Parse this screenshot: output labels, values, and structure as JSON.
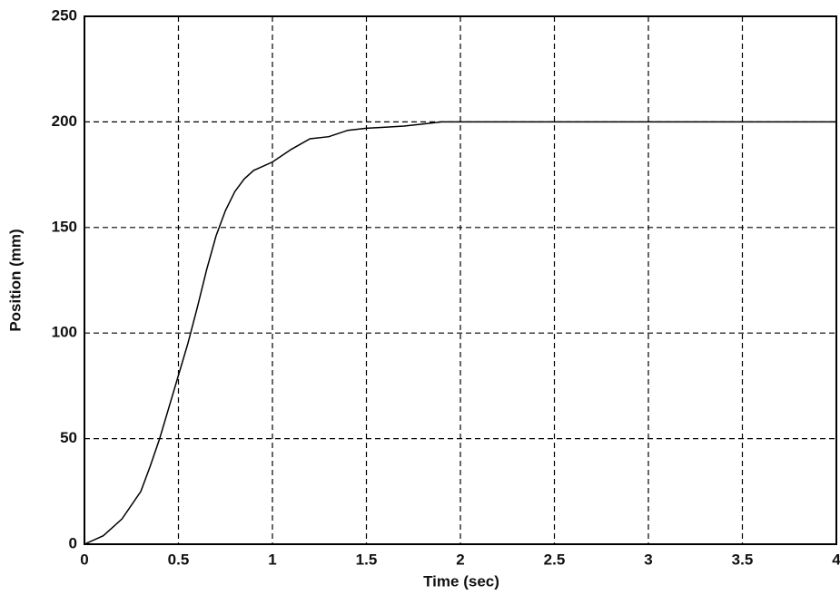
{
  "chart_data": {
    "type": "line",
    "x_label": "Time (sec)",
    "y_label": "Position (mm)",
    "x": [
      0,
      0.1,
      0.2,
      0.3,
      0.35,
      0.4,
      0.45,
      0.5,
      0.55,
      0.6,
      0.65,
      0.7,
      0.75,
      0.8,
      0.85,
      0.9,
      1.0,
      1.1,
      1.2,
      1.3,
      1.4,
      1.5,
      1.6,
      1.7,
      1.8,
      1.9,
      2.0,
      4.0
    ],
    "series": [
      {
        "color": "#000000",
        "values": [
          0,
          4,
          12,
          25,
          37,
          50,
          65,
          80,
          95,
          112,
          130,
          146,
          158,
          167,
          173,
          177,
          181,
          187,
          192,
          193,
          196,
          197,
          197.5,
          198,
          199,
          200,
          200,
          200
        ]
      }
    ],
    "xlim": [
      0,
      4
    ],
    "xticks": [
      0,
      0.5,
      1,
      1.5,
      2,
      2.5,
      3,
      3.5,
      4
    ],
    "ylim": [
      0,
      250
    ],
    "yticks": [
      0,
      50,
      100,
      150,
      200,
      250
    ],
    "grid": true
  }
}
